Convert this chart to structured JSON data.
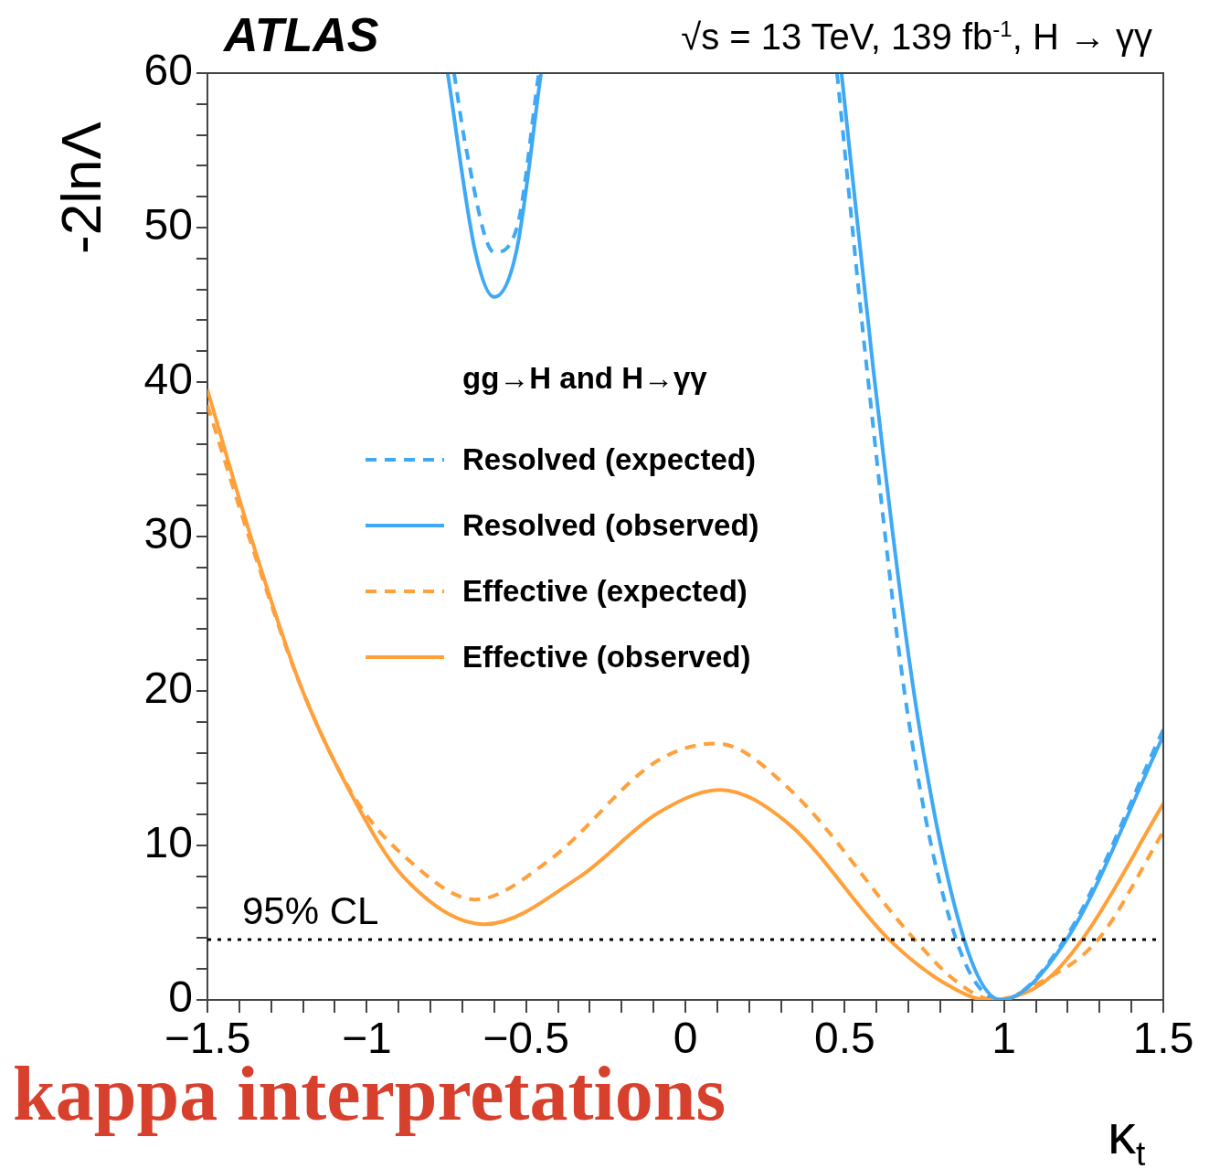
{
  "chart_data": {
    "type": "line",
    "title": "ATLAS",
    "subtitle": "√s = 13 TeV, 139 fb$^{-1}$, H → γγ",
    "xlabel": "κ$_{t}$",
    "ylabel": "-2lnΛ",
    "legend_title": "gg→H and H→γγ",
    "legend": "left",
    "annotations": [
      "kappa interpretations"
    ],
    "xlim": [
      -1.5,
      1.5
    ],
    "ylim": [
      0,
      60
    ],
    "xticks": [
      {
        "value": -1.5,
        "label": "−1.5"
      },
      {
        "value": -1.4,
        "label": null
      },
      {
        "value": -1.3,
        "label": null
      },
      {
        "value": -1.2,
        "label": null
      },
      {
        "value": -1.1,
        "label": null
      },
      {
        "value": -1,
        "label": "−1"
      },
      {
        "value": -0.9,
        "label": null
      },
      {
        "value": -0.8,
        "label": null
      },
      {
        "value": -0.7,
        "label": null
      },
      {
        "value": -0.6,
        "label": null
      },
      {
        "value": -0.5,
        "label": "−0.5"
      },
      {
        "value": -0.4,
        "label": null
      },
      {
        "value": -0.3,
        "label": null
      },
      {
        "value": -0.2,
        "label": null
      },
      {
        "value": -0.1,
        "label": null
      },
      0,
      {
        "value": 0.1,
        "label": null
      },
      {
        "value": 0.2,
        "label": null
      },
      {
        "value": 0.3,
        "label": null
      },
      {
        "value": 0.4,
        "label": null
      },
      0.5,
      {
        "value": 0.6,
        "label": null
      },
      {
        "value": 0.7,
        "label": null
      },
      {
        "value": 0.8,
        "label": null
      },
      {
        "value": 0.9,
        "label": null
      },
      1,
      {
        "value": 1.1,
        "label": null
      },
      {
        "value": 1.2,
        "label": null
      },
      {
        "value": 1.3,
        "label": null
      },
      {
        "value": 1.4,
        "label": null
      },
      1.5
    ],
    "yticks": [
      0,
      {
        "value": 2,
        "label": null
      },
      {
        "value": 4,
        "label": null
      },
      {
        "value": 6,
        "label": null
      },
      {
        "value": 8,
        "label": null
      },
      10,
      {
        "value": 12,
        "label": null
      },
      {
        "value": 14,
        "label": null
      },
      {
        "value": 16,
        "label": null
      },
      {
        "value": 18,
        "label": null
      },
      20,
      {
        "value": 22,
        "label": null
      },
      {
        "value": 24,
        "label": null
      },
      {
        "value": 26,
        "label": null
      },
      {
        "value": 28,
        "label": null
      },
      30,
      {
        "value": 32,
        "label": null
      },
      {
        "value": 34,
        "label": null
      },
      {
        "value": 36,
        "label": null
      },
      {
        "value": 38,
        "label": null
      },
      40,
      {
        "value": 42,
        "label": null
      },
      {
        "value": 44,
        "label": null
      },
      {
        "value": 46,
        "label": null
      },
      {
        "value": 48,
        "label": null
      },
      50,
      {
        "value": 52,
        "label": null
      },
      {
        "value": 54,
        "label": null
      },
      {
        "value": 56,
        "label": null
      },
      {
        "value": 58,
        "label": null
      },
      60
    ],
    "ref_lines": [
      {
        "axis": "y",
        "value": 3.9,
        "label": "95% CL",
        "color": "#000000",
        "line_style": "dotted"
      }
    ],
    "series": [
      {
        "name": "Resolved (expected)",
        "color": "#3fa9f5",
        "line_style": "dashed",
        "x": [
          -0.726,
          -0.688,
          -0.6,
          -0.53,
          -0.46,
          0,
          0.476,
          0.57,
          0.7,
          0.85,
          0.99,
          1.19,
          1.5
        ],
        "values": [
          60,
          55.1,
          48.4,
          49.9,
          60,
          null,
          60,
          40.8,
          18.2,
          3.9,
          0,
          3.9,
          17.5
        ]
      },
      {
        "name": "Resolved (observed)",
        "color": "#3fa9f5",
        "line_style": "solid",
        "x": [
          -0.746,
          -0.66,
          -0.6,
          -0.53,
          -0.453,
          0,
          0.49,
          0.59,
          0.73,
          0.875,
          0.99,
          1.196,
          1.5
        ],
        "values": [
          60,
          48.5,
          45.5,
          48.5,
          60,
          null,
          60,
          40.8,
          18.2,
          3.9,
          0,
          3.9,
          17.1
        ]
      },
      {
        "name": "Effective (expected)",
        "color": "#ffa03a",
        "line_style": "dashed",
        "x": [
          -1.5,
          -1.37,
          -1.205,
          -1.035,
          -0.86,
          -0.66,
          -0.43,
          -0.086,
          0.1,
          0.324,
          0.72,
          0.85,
          0.97,
          1.1,
          1.295,
          1.5
        ],
        "values": [
          38.5,
          30,
          20.2,
          13,
          8.9,
          6.5,
          9,
          15.5,
          16.6,
          13.7,
          3.9,
          1.2,
          0,
          1,
          3.9,
          10.9
        ]
      },
      {
        "name": "Effective (observed)",
        "color": "#ffa03a",
        "line_style": "solid",
        "x": [
          -1.5,
          -1.37,
          -1.205,
          -1.035,
          -0.886,
          -0.63,
          -0.33,
          -0.086,
          0.11,
          0.324,
          0.64,
          0.82,
          0.95,
          1.115,
          1.245,
          1.5
        ],
        "values": [
          39.5,
          30.4,
          20.2,
          12.8,
          8,
          4.9,
          8,
          12.1,
          13.6,
          11.4,
          3.9,
          1,
          0,
          1,
          3.9,
          12.7
        ]
      }
    ]
  }
}
